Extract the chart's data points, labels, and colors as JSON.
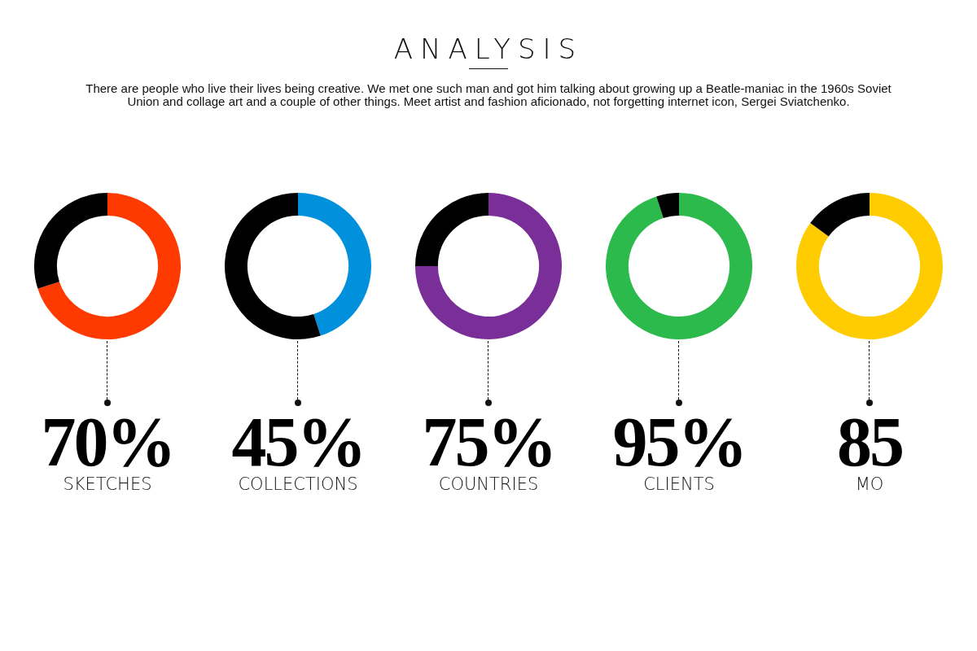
{
  "chart_data": [
    {
      "type": "other",
      "title": "ANALYSIS",
      "subtitle": "There are people who live their lives being creative. We met one such man and got him talking about growing up a Beatle-maniac in the 1960s Soviet Union and collage art and a couple of other things. Meet artist and fashion aficionado, not forgetting internet icon, Sergei Sviatchenko."
    },
    {
      "type": "donut",
      "title": "SKETCHES",
      "categories": [
        null,
        null
      ],
      "values": [
        70,
        30
      ],
      "colors": [
        "#ff3a00",
        "#000000"
      ],
      "annotations": [
        "70%"
      ]
    },
    {
      "type": "donut",
      "title": "COLLECTIONS",
      "categories": [
        null,
        null
      ],
      "values": [
        45,
        55
      ],
      "colors": [
        "#0090dc",
        "#000000"
      ],
      "annotations": [
        "45%"
      ]
    },
    {
      "type": "donut",
      "title": "COUNTRIES",
      "categories": [
        null,
        null
      ],
      "values": [
        75,
        25
      ],
      "colors": [
        "#7a2e98",
        "#000000"
      ],
      "annotations": [
        "75%"
      ]
    },
    {
      "type": "donut",
      "title": "CLIENTS",
      "categories": [
        null,
        null
      ],
      "values": [
        95,
        5
      ],
      "colors": [
        "#2cba4c",
        "#000000"
      ],
      "annotations": [
        "95%"
      ]
    },
    {
      "type": "donut",
      "title": "MO",
      "categories": [
        null,
        null
      ],
      "values": [
        85,
        15
      ],
      "colors": [
        "#ffcc00",
        "#000000"
      ],
      "annotations": [
        "85"
      ]
    }
  ]
}
